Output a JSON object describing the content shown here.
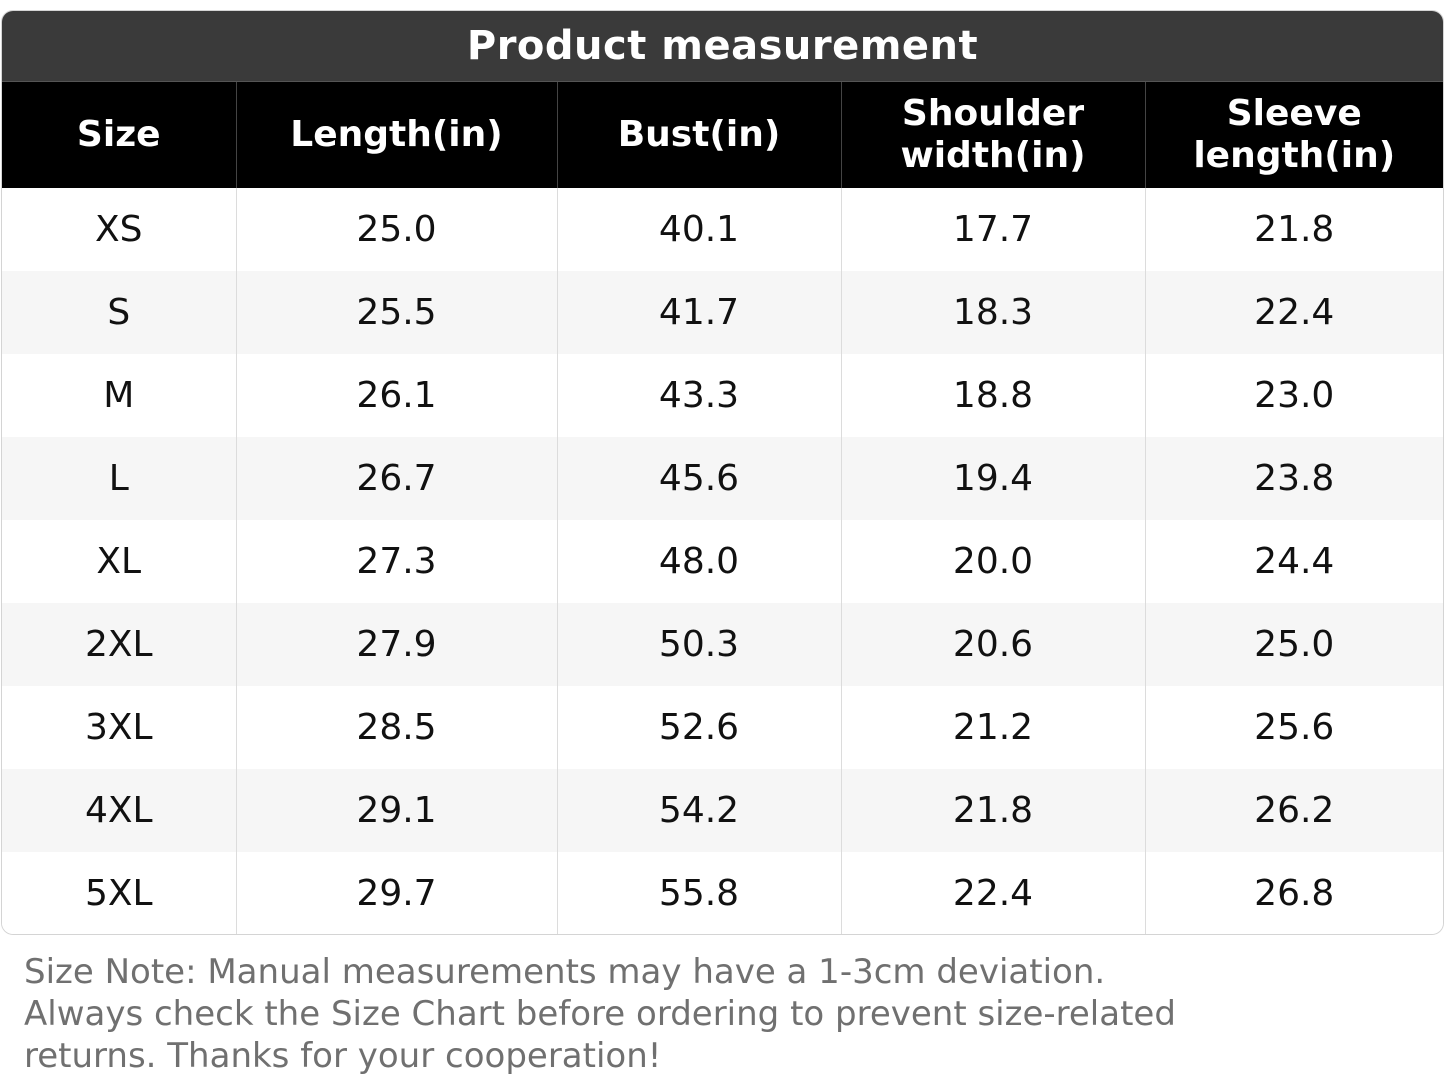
{
  "title": "Product measurement",
  "columns": [
    "Size",
    "Length(in)",
    "Bust(in)",
    "Shoulder width(in)",
    "Sleeve length(in)"
  ],
  "rows": [
    [
      "XS",
      "25.0",
      "40.1",
      "17.7",
      "21.8"
    ],
    [
      "S",
      "25.5",
      "41.7",
      "18.3",
      "22.4"
    ],
    [
      "M",
      "26.1",
      "43.3",
      "18.8",
      "23.0"
    ],
    [
      "L",
      "26.7",
      "45.6",
      "19.4",
      "23.8"
    ],
    [
      "XL",
      "27.3",
      "48.0",
      "20.0",
      "24.4"
    ],
    [
      "2XL",
      "27.9",
      "50.3",
      "20.6",
      "25.0"
    ],
    [
      "3XL",
      "28.5",
      "52.6",
      "21.2",
      "25.6"
    ],
    [
      "4XL",
      "29.1",
      "54.2",
      "21.8",
      "26.2"
    ],
    [
      "5XL",
      "29.7",
      "55.8",
      "22.4",
      "26.8"
    ]
  ],
  "note": "Size Note: Manual measurements may have a 1-3cm deviation. Always check the Size Chart before ordering to prevent size-related returns. Thanks for your cooperation!",
  "colors": {
    "title_bg": "#3a3a3a",
    "header_bg": "#000000",
    "stripe": "#f6f6f6",
    "note_text": "#707070"
  }
}
